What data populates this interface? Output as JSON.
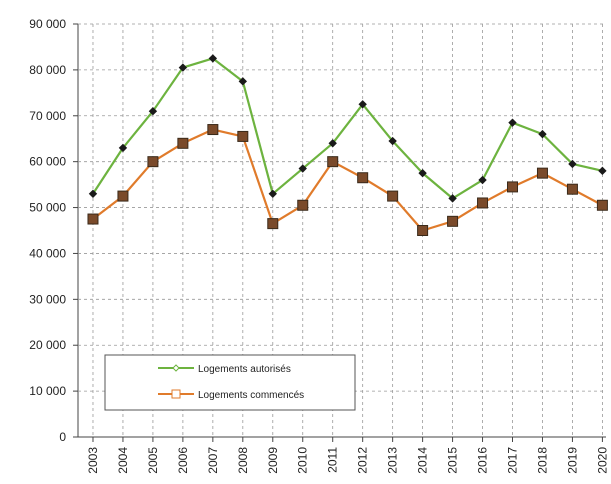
{
  "chart_data": {
    "type": "line",
    "title": "",
    "xlabel": "",
    "ylabel": "",
    "x": [
      "2003",
      "2004",
      "2005",
      "2006",
      "2007",
      "2008",
      "2009",
      "2010",
      "2011",
      "2012",
      "2013",
      "2014",
      "2015",
      "2016",
      "2017",
      "2018",
      "2019",
      "2020"
    ],
    "ylim": [
      0,
      90000
    ],
    "yticks": [
      0,
      10000,
      20000,
      30000,
      40000,
      50000,
      60000,
      70000,
      80000,
      90000
    ],
    "ytick_labels": [
      "0",
      "10 000",
      "20 000",
      "30 000",
      "40 000",
      "50 000",
      "60 000",
      "70 000",
      "80 000",
      "90 000"
    ],
    "grid": "dashed vertical and horizontal",
    "legend_position": "bottom-left",
    "series": [
      {
        "name": "Logements autorisés",
        "color": "#6db33f",
        "marker": "diamond",
        "values": [
          53000,
          63000,
          71000,
          80500,
          82500,
          77500,
          53000,
          58500,
          64000,
          72500,
          64500,
          57500,
          52000,
          56000,
          68500,
          66000,
          59500,
          58000
        ]
      },
      {
        "name": "Logements commencés",
        "color": "#e07b2b",
        "marker": "square",
        "values": [
          47500,
          52500,
          60000,
          64000,
          67000,
          65500,
          46500,
          50500,
          60000,
          56500,
          52500,
          45000,
          47000,
          51000,
          54500,
          57500,
          54000,
          50500
        ]
      }
    ]
  }
}
